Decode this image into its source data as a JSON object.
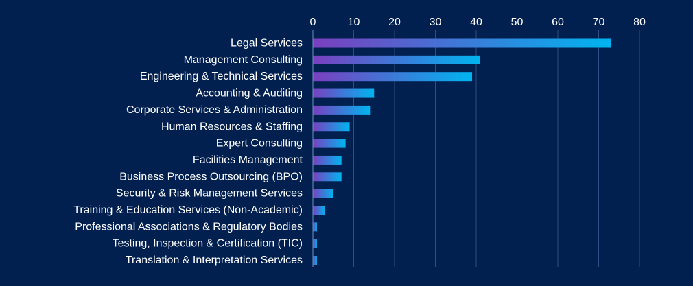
{
  "colors": {
    "background": "#02204f",
    "gridline": "#2f4d82",
    "axis_line": "#6f8fbf",
    "text": "#ffffff",
    "bar_start": "#7a3fbf",
    "bar_end": "#00b4f0"
  },
  "chart_data": {
    "type": "bar",
    "orientation": "horizontal",
    "title": "",
    "xlabel": "",
    "ylabel": "",
    "x_axis_position": "top",
    "xlim": [
      0,
      80
    ],
    "xticks": [
      0,
      10,
      20,
      30,
      40,
      50,
      60,
      70,
      80
    ],
    "grid": true,
    "legend": "none",
    "categories": [
      "Legal Services",
      "Management Consulting",
      "Engineering & Technical Services",
      "Accounting & Auditing",
      "Corporate Services & Administration",
      "Human Resources & Staffing",
      "Expert Consulting",
      "Facilities Management",
      "Business Process Outsourcing (BPO)",
      "Security & Risk Management Services",
      "Training & Education Services (Non-Academic)",
      "Professional Associations & Regulatory Bodies",
      "Testing, Inspection & Certification (TIC)",
      "Translation & Interpretation Services"
    ],
    "values": [
      73,
      41,
      39,
      15,
      14,
      9,
      8,
      7,
      7,
      5,
      3,
      1,
      1,
      1
    ]
  }
}
